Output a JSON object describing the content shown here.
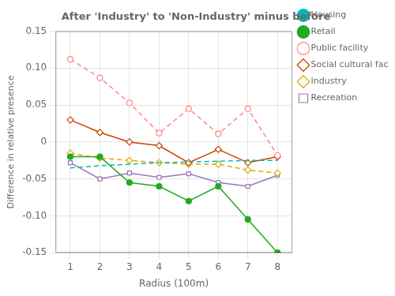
{
  "chart_data": {
    "type": "line",
    "title": "After 'Industry' to 'Non-Industry' minus before",
    "x_label": "Radius (100m)",
    "y_label": "Difference in relative presence",
    "x": [
      1,
      2,
      3,
      4,
      5,
      6,
      7,
      8
    ],
    "series": [
      {
        "name": "Housing",
        "color": "#00BBBB",
        "line_style": "dashed",
        "marker": "none",
        "values": [
          -0.035,
          -0.032,
          -0.03,
          -0.028,
          -0.027,
          -0.026,
          -0.025,
          -0.025
        ]
      },
      {
        "name": "Retail",
        "color": "#22AA22",
        "line_style": "solid",
        "marker": "circle",
        "values": [
          -0.02,
          -0.02,
          -0.055,
          -0.06,
          -0.08,
          -0.06,
          -0.105,
          -0.15
        ]
      },
      {
        "name": "Public facility",
        "color": "#FF8888",
        "line_style": "dashed",
        "marker": "open_circle",
        "values": [
          0.112,
          0.087,
          0.053,
          0.012,
          0.045,
          0.011,
          0.045,
          -0.018
        ]
      },
      {
        "name": "Social cultural facility",
        "color": "#CC4400",
        "line_style": "solid",
        "marker": "open_diamond",
        "values": [
          0.03,
          0.013,
          0.0,
          -0.005,
          -0.028,
          -0.01,
          -0.028,
          -0.02
        ]
      },
      {
        "name": "Industry",
        "color": "#DDAA00",
        "line_style": "dashed",
        "marker": "open_diamond",
        "values": [
          -0.015,
          -0.022,
          -0.025,
          -0.028,
          -0.03,
          -0.03,
          -0.038,
          -0.042
        ]
      },
      {
        "name": "Recreation",
        "color": "#9977BB",
        "line_style": "solid",
        "marker": "open_square",
        "values": [
          -0.028,
          -0.05,
          -0.042,
          -0.048,
          -0.043,
          -0.055,
          -0.06,
          -0.045
        ]
      }
    ],
    "xlim": [
      0.5,
      8.5
    ],
    "xticks": [
      1,
      2,
      3,
      4,
      5,
      6,
      7,
      8
    ],
    "ylim": [
      -0.15,
      0.15
    ],
    "yticks": [
      -0.15,
      {
        "value": -0.1,
        "label": "-0.10"
      },
      -0.05,
      0,
      0.05,
      {
        "value": 0.1,
        "label": "0.10"
      },
      0.15
    ],
    "grid": true,
    "legend": "right"
  }
}
